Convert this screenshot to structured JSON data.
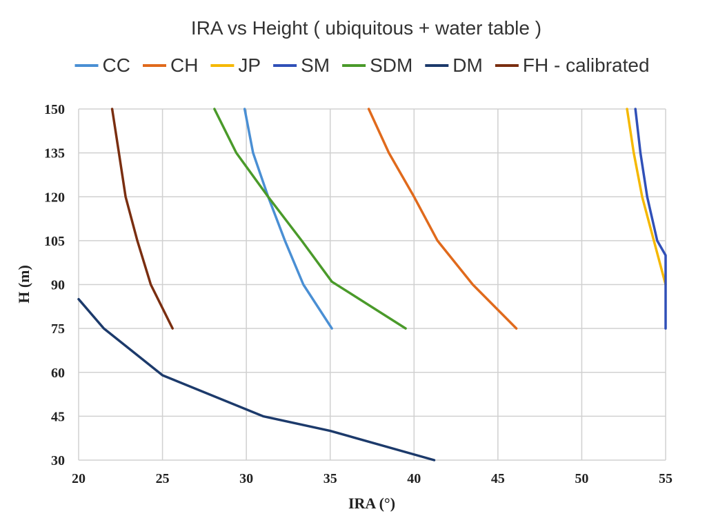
{
  "chart_data": {
    "type": "line",
    "title": "IRA vs Height ( ubiquitous + water table )",
    "xlabel": "IRA (°)",
    "ylabel": "H (m)",
    "xlim": [
      20,
      55
    ],
    "ylim": [
      30,
      150
    ],
    "xticks": [
      "20",
      "25",
      "30",
      "35",
      "40",
      "45",
      "50",
      "55"
    ],
    "yticks": [
      "30",
      "45",
      "60",
      "75",
      "90",
      "105",
      "120",
      "135",
      "150"
    ],
    "grid": true,
    "legend_position": "top",
    "series": [
      {
        "name": "CC",
        "color": "#4a8fd4",
        "points": [
          [
            35.1,
            75
          ],
          [
            33.4,
            90
          ],
          [
            32.3,
            105
          ],
          [
            31.3,
            120
          ],
          [
            30.4,
            135
          ],
          [
            29.9,
            150
          ]
        ]
      },
      {
        "name": "CH",
        "color": "#e06a1c",
        "points": [
          [
            46.1,
            75
          ],
          [
            43.5,
            90
          ],
          [
            41.4,
            105
          ],
          [
            40.0,
            120
          ],
          [
            38.5,
            135
          ],
          [
            37.3,
            150
          ]
        ]
      },
      {
        "name": "JP",
        "color": "#f5b800",
        "points": [
          [
            55.0,
            90
          ],
          [
            54.3,
            105
          ],
          [
            53.6,
            120
          ],
          [
            53.1,
            135
          ],
          [
            52.7,
            150
          ]
        ]
      },
      {
        "name": "SM",
        "color": "#3050b8",
        "points": [
          [
            55.0,
            75
          ],
          [
            55.0,
            90
          ],
          [
            55.0,
            100
          ],
          [
            54.5,
            105
          ],
          [
            53.9,
            120
          ],
          [
            53.5,
            135
          ],
          [
            53.2,
            150
          ]
        ]
      },
      {
        "name": "SDM",
        "color": "#4a9a2a",
        "points": [
          [
            39.5,
            75
          ],
          [
            35.1,
            91
          ],
          [
            33.3,
            105
          ],
          [
            31.3,
            120
          ],
          [
            29.4,
            135
          ],
          [
            28.1,
            150
          ]
        ]
      },
      {
        "name": "DM",
        "color": "#1c3a6b",
        "points": [
          [
            41.2,
            30
          ],
          [
            35.0,
            40
          ],
          [
            31.0,
            45
          ],
          [
            25.0,
            59
          ],
          [
            21.5,
            75
          ],
          [
            20.0,
            85
          ]
        ]
      },
      {
        "name": "FH - calibrated",
        "color": "#7a2e10",
        "points": [
          [
            25.6,
            75
          ],
          [
            24.3,
            90
          ],
          [
            23.5,
            105
          ],
          [
            22.8,
            120
          ],
          [
            22.4,
            135
          ],
          [
            22.0,
            150
          ]
        ]
      }
    ]
  }
}
